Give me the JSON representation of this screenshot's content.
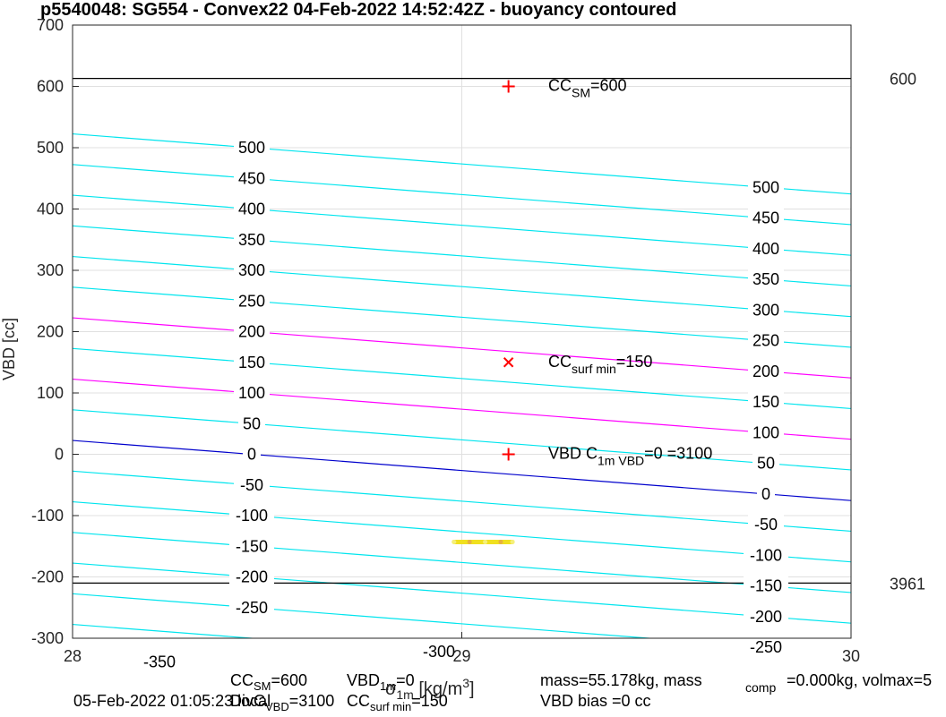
{
  "chart_data": {
    "type": "line",
    "title": "p5540048: SG554 - Convex22 04-Feb-2022 14:52:42Z - buoyancy contoured",
    "xlabel": "σ1m [kg/m³]",
    "ylabel": "VBD [cc]",
    "xlim": [
      28,
      30
    ],
    "ylim": [
      -300,
      700
    ],
    "x_ticks": [
      "28",
      "29",
      "30"
    ],
    "y_ticks": [
      "-300",
      "-200",
      "-100",
      "0",
      "100",
      "200",
      "300",
      "400",
      "500",
      "600",
      "700"
    ],
    "grid": true,
    "contour_slope_cc_per_kgm3": -49,
    "contour_levels": [
      -350,
      -300,
      -250,
      -200,
      -150,
      -100,
      -50,
      0,
      50,
      100,
      150,
      200,
      250,
      300,
      350,
      400,
      450,
      500
    ],
    "contour_labels_left": [
      "500",
      "450",
      "400",
      "350",
      "300",
      "250",
      "200",
      "150",
      "100",
      "50",
      "0",
      "-50",
      "-100",
      "-150",
      "-200",
      "-250",
      "-350",
      "-300"
    ],
    "contour_labels_right": [
      "500",
      "450",
      "400",
      "350",
      "300",
      "250",
      "200",
      "150",
      "100",
      "50",
      "0",
      "-50",
      "-100",
      "-150",
      "-200",
      "-250"
    ],
    "highlight_levels": [
      {
        "level": 0,
        "color": "#0000cc"
      },
      {
        "level": 100,
        "color": "#ff00ff"
      },
      {
        "level": 200,
        "color": "#ff00ff"
      }
    ],
    "contour_color": "#00e5ee",
    "hlines": [
      {
        "y": 613,
        "label": "600"
      },
      {
        "y": -210,
        "label": "3961"
      }
    ],
    "markers": [
      {
        "x": 29.12,
        "y": 600,
        "symbol": "+",
        "label": "CC",
        "sub": "SM",
        "tail": "=600"
      },
      {
        "x": 29.12,
        "y": 150,
        "symbol": "x",
        "label": "CC",
        "sub": "surf min",
        "tail": "=150"
      },
      {
        "x": 29.12,
        "y": 0,
        "symbol": "+",
        "label": "VBD C",
        "sub": "1m VBD",
        "tail": "=0 =3100"
      }
    ],
    "marker_color": "#ff0000",
    "trace": {
      "color": "#f0e020",
      "x": [
        28.98,
        29.02,
        29.06,
        29.1,
        29.13
      ],
      "y": [
        -143,
        -143,
        -143,
        -143,
        -143
      ]
    },
    "footer": {
      "left_date": "05-Feb-2022 01:05:23 local",
      "cc_sm": "CCSM=600",
      "vbd_1m": "VBD1m=0",
      "divc": "DivC VBD=3100",
      "cc_surf": "CCsurf min=150",
      "mass": "mass=55.178kg, mass",
      "comp": "comp",
      "mass_tail": "=0.000kg, volmax=5",
      "vbd_bias": "VBD bias =0 cc"
    }
  }
}
